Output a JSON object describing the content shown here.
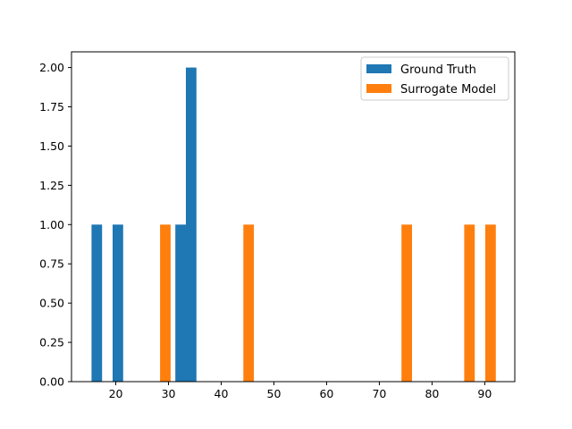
{
  "chart_data": {
    "type": "bar",
    "xlim": [
      11.6,
      95.7
    ],
    "ylim": [
      0,
      2.1
    ],
    "x_ticks": [
      20,
      30,
      40,
      50,
      60,
      70,
      80,
      90
    ],
    "y_ticks": [
      0,
      0.25,
      0.5,
      0.75,
      1,
      1.25,
      1.5,
      1.75,
      2
    ],
    "x_tick_labels": [
      "20",
      "30",
      "40",
      "50",
      "60",
      "70",
      "80",
      "90"
    ],
    "y_tick_labels": [
      "0.00",
      "0.25",
      "0.50",
      "0.75",
      "1.00",
      "1.25",
      "1.50",
      "1.75",
      "2.00"
    ],
    "grid": false,
    "legend_position": "top-right",
    "series": [
      {
        "name": "Ground Truth",
        "color": "#1f77b4",
        "bars": [
          {
            "x0": 15.4,
            "x1": 17.4,
            "count": 1
          },
          {
            "x0": 19.4,
            "x1": 21.4,
            "count": 1
          },
          {
            "x0": 31.3,
            "x1": 33.3,
            "count": 1
          },
          {
            "x0": 33.3,
            "x1": 35.3,
            "count": 2
          }
        ]
      },
      {
        "name": "Surrogate Model",
        "color": "#ff7f0e",
        "bars": [
          {
            "x0": 28.4,
            "x1": 30.4,
            "count": 1
          },
          {
            "x0": 44.2,
            "x1": 46.2,
            "count": 1
          },
          {
            "x0": 74.2,
            "x1": 76.2,
            "count": 1
          },
          {
            "x0": 86.1,
            "x1": 88.1,
            "count": 1
          },
          {
            "x0": 90.1,
            "x1": 92.1,
            "count": 1
          }
        ]
      }
    ]
  }
}
